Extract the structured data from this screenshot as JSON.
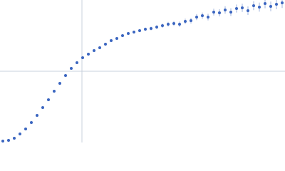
{
  "chart_data": {
    "type": "scatter",
    "color": "#3a65c0",
    "grid": true,
    "xlim": [
      0,
      400
    ],
    "ylim": [
      0,
      200
    ],
    "xticks": [
      115
    ],
    "yticks": [
      100
    ],
    "x": [
      4,
      12,
      20,
      28,
      36,
      44,
      52,
      60,
      68,
      76,
      84,
      92,
      100,
      108,
      116,
      124,
      132,
      140,
      148,
      156,
      164,
      172,
      180,
      188,
      196,
      204,
      212,
      220,
      228,
      236,
      244,
      252,
      260,
      268,
      276,
      284,
      292,
      300,
      308,
      316,
      324,
      332,
      340,
      348,
      356,
      364,
      372,
      380,
      388,
      396
    ],
    "values": [
      2,
      3,
      6,
      12,
      19,
      28,
      38,
      49,
      60,
      72,
      83,
      94,
      104,
      112,
      119,
      124,
      129,
      133,
      138,
      143,
      146,
      150,
      153,
      155,
      157,
      159,
      160,
      162,
      164,
      166,
      167,
      166,
      170,
      171,
      176,
      178,
      176,
      183,
      182,
      186,
      183,
      188,
      189,
      185,
      192,
      190,
      195,
      191,
      194,
      196
    ],
    "errors": [
      0.3,
      0.3,
      0.3,
      0.3,
      0.3,
      0.4,
      0.4,
      0.4,
      0.5,
      0.5,
      0.5,
      0.6,
      0.6,
      0.7,
      0.8,
      0.9,
      1,
      1,
      1.2,
      1.3,
      1.5,
      1.6,
      1.8,
      2,
      2.2,
      2.4,
      2.6,
      2.8,
      3,
      3.2,
      3.4,
      3.6,
      3.8,
      4,
      4.2,
      4.4,
      4.6,
      4.8,
      5,
      5.2,
      5.4,
      5.6,
      5.8,
      6,
      6.2,
      6.4,
      6.6,
      6.8,
      7,
      7.2
    ]
  }
}
